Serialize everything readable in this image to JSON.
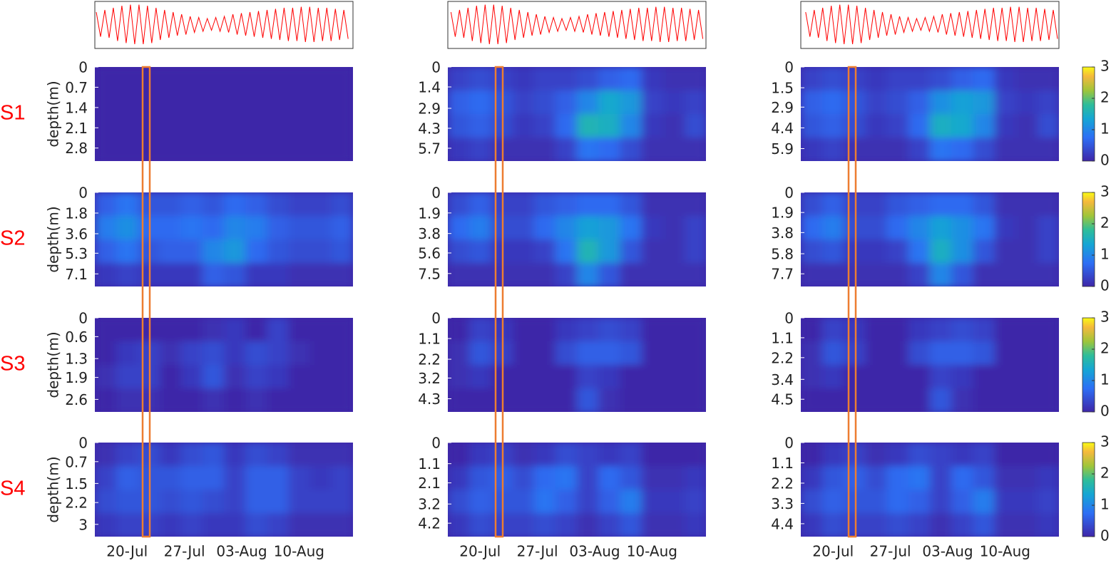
{
  "row_labels": [
    "S1",
    "S2",
    "S3",
    "S4"
  ],
  "chart_data": {
    "type": "heatmap",
    "ylabel": "depth(m)",
    "xticks": [
      "20-Jul",
      "27-Jul",
      "03-Aug",
      "10-Aug"
    ],
    "clim": [
      0,
      3
    ],
    "cticks": [
      0,
      1,
      2,
      3
    ],
    "tide": {
      "type": "line",
      "color": "#ff0000",
      "ylim": [
        -1,
        1
      ],
      "values": [
        0.6,
        -0.55,
        0.7,
        -0.6,
        0.8,
        -0.75,
        0.9,
        -0.85,
        0.95,
        -0.9,
        0.95,
        -0.9,
        0.9,
        -0.85,
        0.8,
        -0.7,
        0.7,
        -0.6,
        0.6,
        -0.5,
        0.5,
        -0.45,
        0.4,
        -0.35,
        0.35,
        -0.3,
        0.3,
        -0.25,
        0.35,
        -0.3,
        0.4,
        -0.35,
        0.5,
        -0.45,
        0.55,
        -0.5,
        0.6,
        -0.55,
        0.65,
        -0.6,
        0.7,
        -0.65,
        0.75,
        -0.7,
        0.8,
        -0.75,
        0.8,
        -0.75,
        0.85,
        -0.8,
        0.85,
        -0.8,
        0.8,
        -0.75,
        0.8,
        -0.75,
        0.75,
        -0.7,
        0.7,
        -0.65
      ]
    },
    "panels": [
      {
        "yticks": [
          0,
          0.7,
          1.4,
          2.1,
          2.8
        ],
        "ylim": [
          0,
          3.25
        ],
        "z": [
          [
            0,
            0,
            0,
            0,
            0,
            0,
            0,
            0,
            0,
            0,
            0,
            0
          ],
          [
            0,
            0,
            0,
            0,
            0,
            0,
            0,
            0,
            0,
            0,
            0,
            0
          ],
          [
            0,
            0,
            0,
            0,
            0,
            0,
            0,
            0,
            0,
            0,
            0,
            0
          ],
          [
            0,
            0,
            0,
            0,
            0,
            0,
            0,
            0,
            0,
            0,
            0,
            0
          ]
        ]
      },
      {
        "yticks": [
          0,
          1.4,
          2.9,
          4.3,
          5.7
        ],
        "ylim": [
          0,
          6.6
        ],
        "z": [
          [
            0.3,
            0.4,
            0.3,
            0.2,
            0.3,
            0.3,
            0.4,
            0.6,
            0.7,
            0.2,
            0.1,
            0.1
          ],
          [
            0.6,
            0.7,
            0.5,
            0.3,
            0.4,
            0.6,
            1.0,
            1.4,
            1.2,
            0.3,
            0.2,
            0.3
          ],
          [
            0.5,
            0.6,
            0.4,
            0.2,
            0.3,
            0.7,
            1.6,
            1.5,
            1.0,
            0.2,
            0.1,
            0.4
          ],
          [
            0.2,
            0.3,
            0.1,
            0.1,
            0.1,
            0.3,
            0.8,
            0.7,
            0.4,
            0.1,
            0.1,
            0.1
          ]
        ]
      },
      {
        "yticks": [
          0,
          1.5,
          2.9,
          4.4,
          5.9
        ],
        "ylim": [
          0,
          6.8
        ],
        "z": [
          [
            0.3,
            0.4,
            0.3,
            0.2,
            0.3,
            0.3,
            0.4,
            0.6,
            0.7,
            0.2,
            0.1,
            0.1
          ],
          [
            0.6,
            0.7,
            0.5,
            0.3,
            0.4,
            0.6,
            1.1,
            1.3,
            1.2,
            0.3,
            0.2,
            0.3
          ],
          [
            0.5,
            0.6,
            0.4,
            0.2,
            0.3,
            0.7,
            1.5,
            1.4,
            1.0,
            0.2,
            0.1,
            0.4
          ],
          [
            0.2,
            0.3,
            0.1,
            0.1,
            0.1,
            0.3,
            0.8,
            0.7,
            0.4,
            0.1,
            0.1,
            0.1
          ]
        ]
      },
      {
        "yticks": [
          0,
          1.8,
          3.6,
          5.3,
          7.1
        ],
        "ylim": [
          0,
          8.2
        ],
        "z": [
          [
            0.6,
            0.8,
            0.5,
            0.5,
            0.6,
            0.5,
            0.7,
            0.6,
            0.4,
            0.3,
            0.3,
            0.4
          ],
          [
            0.9,
            1.1,
            0.7,
            0.7,
            0.8,
            0.7,
            1.0,
            0.9,
            0.6,
            0.5,
            0.5,
            0.6
          ],
          [
            0.6,
            0.8,
            0.5,
            0.6,
            0.6,
            1.0,
            1.2,
            0.7,
            0.5,
            0.4,
            0.4,
            0.5
          ],
          [
            0.2,
            0.3,
            0.2,
            0.2,
            0.2,
            0.6,
            0.5,
            0.2,
            0.2,
            0.1,
            0.1,
            0.1
          ]
        ]
      },
      {
        "yticks": [
          0,
          1.9,
          3.8,
          5.6,
          7.5
        ],
        "ylim": [
          0,
          8.7
        ],
        "z": [
          [
            0.4,
            0.6,
            0.3,
            0.3,
            0.5,
            0.6,
            0.7,
            0.7,
            0.5,
            0.1,
            0.1,
            0.1
          ],
          [
            0.7,
            0.9,
            0.4,
            0.4,
            0.7,
            1.0,
            1.3,
            1.2,
            0.8,
            0.2,
            0.1,
            0.3
          ],
          [
            0.4,
            0.5,
            0.2,
            0.2,
            0.3,
            0.8,
            1.6,
            1.2,
            0.5,
            0.1,
            0.1,
            0.3
          ],
          [
            0.1,
            0.1,
            0.1,
            0.1,
            0.1,
            0.3,
            1.0,
            0.5,
            0.1,
            0.1,
            0.1,
            0.1
          ]
        ]
      },
      {
        "yticks": [
          0,
          1.9,
          3.8,
          5.8,
          7.7
        ],
        "ylim": [
          0,
          8.9
        ],
        "z": [
          [
            0.4,
            0.6,
            0.3,
            0.3,
            0.5,
            0.6,
            0.7,
            0.7,
            0.5,
            0.1,
            0.1,
            0.1
          ],
          [
            0.7,
            0.9,
            0.4,
            0.4,
            0.7,
            1.0,
            1.3,
            1.1,
            0.8,
            0.2,
            0.1,
            0.3
          ],
          [
            0.4,
            0.5,
            0.2,
            0.2,
            0.3,
            0.8,
            1.5,
            1.1,
            0.5,
            0.1,
            0.1,
            0.3
          ],
          [
            0.1,
            0.1,
            0.1,
            0.1,
            0.1,
            0.3,
            1.0,
            0.5,
            0.1,
            0.1,
            0.1,
            0.1
          ]
        ]
      },
      {
        "yticks": [
          0,
          0.6,
          1.3,
          1.9,
          2.6
        ],
        "ylim": [
          0,
          3.0
        ],
        "z": [
          [
            0,
            0,
            0,
            0,
            0,
            0.1,
            0.2,
            0,
            0.3,
            0,
            0,
            0
          ],
          [
            0,
            0.2,
            0.3,
            0.1,
            0.3,
            0.4,
            0.2,
            0.4,
            0.3,
            0.1,
            0,
            0
          ],
          [
            0.1,
            0.3,
            0.3,
            0,
            0.2,
            0.5,
            0.1,
            0.3,
            0.2,
            0,
            0,
            0
          ],
          [
            0,
            0.1,
            0.1,
            0,
            0,
            0.1,
            0,
            0.1,
            0,
            0,
            0,
            0
          ]
        ]
      },
      {
        "yticks": [
          0,
          1.1,
          2.2,
          3.2,
          4.3
        ],
        "ylim": [
          0,
          5.0
        ],
        "z": [
          [
            0,
            0.3,
            0.2,
            0,
            0,
            0.2,
            0.3,
            0.4,
            0.3,
            0,
            0,
            0
          ],
          [
            0.1,
            0.5,
            0.3,
            0,
            0,
            0.4,
            0.6,
            0.6,
            0.5,
            0,
            0,
            0
          ],
          [
            0.1,
            0.2,
            0,
            0,
            0,
            0,
            0.3,
            0.2,
            0,
            0,
            0,
            0
          ],
          [
            0,
            0,
            0,
            0,
            0,
            0,
            0.5,
            0.1,
            0,
            0,
            0,
            0
          ]
        ]
      },
      {
        "yticks": [
          0,
          1.1,
          2.2,
          3.4,
          4.5
        ],
        "ylim": [
          0,
          5.2
        ],
        "z": [
          [
            0,
            0.3,
            0.2,
            0,
            0,
            0.2,
            0.3,
            0.4,
            0.3,
            0,
            0,
            0
          ],
          [
            0.1,
            0.5,
            0.3,
            0,
            0,
            0.4,
            0.6,
            0.6,
            0.5,
            0,
            0,
            0
          ],
          [
            0.1,
            0.2,
            0,
            0,
            0,
            0,
            0.3,
            0.2,
            0,
            0,
            0,
            0
          ],
          [
            0,
            0,
            0,
            0,
            0,
            0,
            0.5,
            0.1,
            0,
            0,
            0,
            0
          ]
        ]
      },
      {
        "yticks": [
          0,
          0.7,
          1.5,
          2.2,
          3
        ],
        "ylim": [
          0,
          3.45
        ],
        "z": [
          [
            0.1,
            0.3,
            0.4,
            0.2,
            0.4,
            0.5,
            0.2,
            0.4,
            0.3,
            0.1,
            0.1,
            0.1
          ],
          [
            0.3,
            0.6,
            0.5,
            0.5,
            0.6,
            0.6,
            0.3,
            0.6,
            0.6,
            0.3,
            0.2,
            0.3
          ],
          [
            0.4,
            0.5,
            0.5,
            0.4,
            0.5,
            0.4,
            0.3,
            0.6,
            0.6,
            0.3,
            0.3,
            0.3
          ],
          [
            0.2,
            0.3,
            0.3,
            0.2,
            0.3,
            0.2,
            0.2,
            0.4,
            0.3,
            0.1,
            0.1,
            0.1
          ]
        ]
      },
      {
        "yticks": [
          0,
          1.1,
          2.1,
          3.2,
          4.2
        ],
        "ylim": [
          0,
          4.9
        ],
        "z": [
          [
            0,
            0.2,
            0.3,
            0.1,
            0.2,
            0.4,
            0.3,
            0.2,
            0.3,
            0,
            0,
            0
          ],
          [
            0.2,
            0.5,
            0.6,
            0.4,
            0.7,
            0.8,
            0.3,
            0.7,
            0.5,
            0.1,
            0.1,
            0.2
          ],
          [
            0.4,
            0.6,
            0.5,
            0.5,
            0.8,
            0.6,
            0.3,
            0.6,
            0.9,
            0.2,
            0.2,
            0.3
          ],
          [
            0.2,
            0.4,
            0.3,
            0.3,
            0.4,
            0.3,
            0.1,
            0.3,
            0.5,
            0.1,
            0.1,
            0.2
          ]
        ]
      },
      {
        "yticks": [
          0,
          1.1,
          2.2,
          3.3,
          4.4
        ],
        "ylim": [
          0,
          5.1
        ],
        "z": [
          [
            0,
            0.2,
            0.3,
            0.1,
            0.2,
            0.4,
            0.3,
            0.2,
            0.3,
            0,
            0,
            0
          ],
          [
            0.2,
            0.5,
            0.6,
            0.4,
            0.7,
            0.8,
            0.3,
            0.7,
            0.5,
            0.1,
            0.1,
            0.2
          ],
          [
            0.4,
            0.6,
            0.5,
            0.5,
            0.7,
            0.6,
            0.3,
            0.6,
            0.9,
            0.2,
            0.2,
            0.3
          ],
          [
            0.2,
            0.4,
            0.3,
            0.3,
            0.4,
            0.3,
            0.1,
            0.3,
            0.5,
            0.1,
            0.1,
            0.2
          ]
        ]
      }
    ]
  }
}
